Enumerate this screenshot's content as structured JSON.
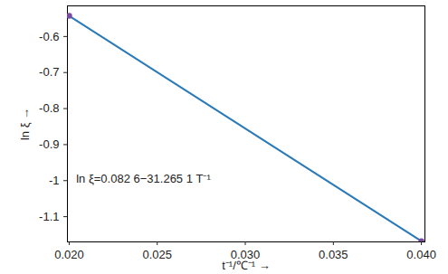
{
  "chart_data": {
    "type": "line",
    "x_label": "t⁻¹/℃⁻¹",
    "y_label": "ln ξ",
    "x": [
      0.02,
      0.04
    ],
    "series": [
      {
        "name": "ln ξ",
        "color": "#2a7ab9",
        "marker": "circle",
        "line_style": "solid",
        "values": [
          -0.5427,
          -1.168
        ]
      }
    ],
    "annotations": [
      {
        "text": "ln ξ=0.082 6−31.265 1 T⁻¹",
        "x": 0.0204,
        "y": -0.995
      }
    ],
    "xlim": [
      0.0199,
      0.0402
    ],
    "xticks": [
      {
        "value": 0.02,
        "label": "0.020"
      },
      {
        "value": 0.025,
        "label": "0.025"
      },
      {
        "value": 0.03,
        "label": "0.030"
      },
      {
        "value": 0.035,
        "label": "0.035"
      },
      {
        "value": 0.04,
        "label": "0.040"
      }
    ],
    "ylim": [
      -1.17,
      -0.515
    ],
    "yticks": [
      -1.1,
      -1.0,
      -0.9,
      -0.8,
      -0.7,
      -0.6
    ],
    "grid": false
  }
}
